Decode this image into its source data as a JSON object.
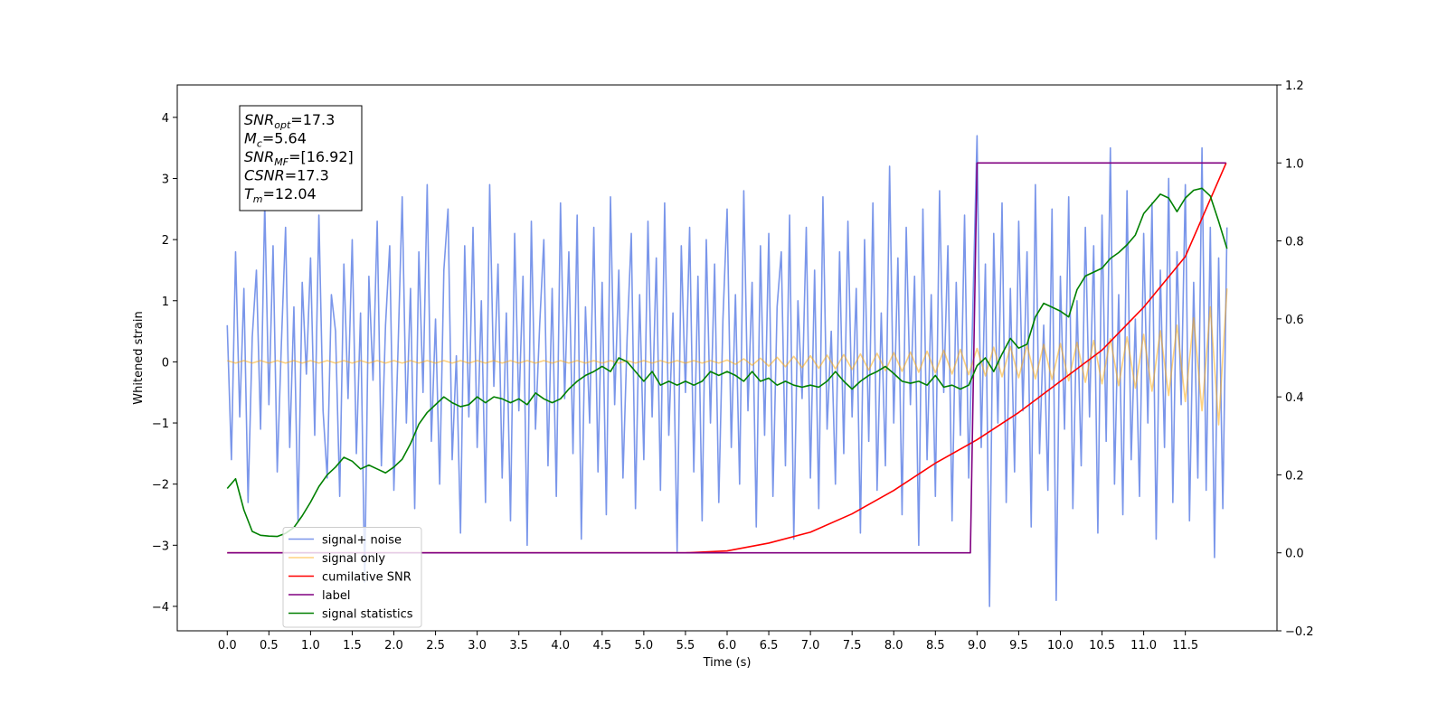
{
  "chart_data": {
    "type": "line",
    "xlabel": "Time (s)",
    "ylabel": "Whitened strain",
    "xlim": [
      -0.6,
      12.6
    ],
    "ylim": [
      -4.4,
      4.53
    ],
    "y2lim": [
      -0.2,
      1.2
    ],
    "xticks": [
      {
        "value": 0,
        "label": "0.0"
      },
      0.5,
      {
        "value": 1,
        "label": "1.0"
      },
      1.5,
      {
        "value": 2,
        "label": "2.0"
      },
      2.5,
      {
        "value": 3,
        "label": "3.0"
      },
      3.5,
      {
        "value": 4,
        "label": "4.0"
      },
      4.5,
      {
        "value": 5,
        "label": "5.0"
      },
      5.5,
      {
        "value": 6,
        "label": "6.0"
      },
      6.5,
      {
        "value": 7,
        "label": "7.0"
      },
      7.5,
      {
        "value": 8,
        "label": "8.0"
      },
      8.5,
      {
        "value": 9,
        "label": "9.0"
      },
      9.5,
      {
        "value": 10,
        "label": "10.0"
      },
      10.5,
      {
        "value": 11,
        "label": "11.0"
      },
      11.5
    ],
    "yticks": [
      {
        "value": -4,
        "label": "−4"
      },
      {
        "value": -3,
        "label": "−3"
      },
      {
        "value": -2,
        "label": "−2"
      },
      {
        "value": -1,
        "label": "−1"
      },
      0,
      1,
      2,
      3,
      4
    ],
    "y2ticks": [
      {
        "value": -0.2,
        "label": "−0.2"
      },
      {
        "value": 0,
        "label": "0.0"
      },
      0.2,
      0.4,
      0.6,
      0.8,
      {
        "value": 1,
        "label": "1.0"
      },
      1.2
    ],
    "legend": "lower left",
    "annotation": [
      {
        "text": "SNR",
        "sub": "opt",
        "rest": "=17.3"
      },
      {
        "text": "M",
        "sub": "c",
        "rest": "=5.64"
      },
      {
        "text": "SNR",
        "sub": "MF",
        "rest": "=[16.92]"
      },
      {
        "text": "CSNR",
        "sub": "",
        "rest": "=17.3"
      },
      {
        "text": "T",
        "sub": "m",
        "rest": "=12.04"
      }
    ],
    "x": [
      0,
      0.1,
      0.2,
      0.3,
      0.4,
      0.5,
      0.6,
      0.7,
      0.8,
      0.9,
      1,
      1.1,
      1.2,
      1.3,
      1.4,
      1.5,
      1.6,
      1.7,
      1.8,
      1.9,
      2,
      2.1,
      2.2,
      2.3,
      2.4,
      2.5,
      2.6,
      2.7,
      2.8,
      2.9,
      3,
      3.1,
      3.2,
      3.3,
      3.4,
      3.5,
      3.6,
      3.7,
      3.8,
      3.9,
      4,
      4.1,
      4.2,
      4.3,
      4.4,
      4.5,
      4.6,
      4.7,
      4.8,
      4.9,
      5,
      5.1,
      5.2,
      5.3,
      5.4,
      5.5,
      5.6,
      5.7,
      5.8,
      5.9,
      6,
      6.1,
      6.2,
      6.3,
      6.4,
      6.5,
      6.6,
      6.7,
      6.8,
      6.9,
      7,
      7.1,
      7.2,
      7.3,
      7.4,
      7.5,
      7.6,
      7.7,
      7.8,
      7.9,
      8,
      8.1,
      8.2,
      8.3,
      8.4,
      8.5,
      8.6,
      8.7,
      8.8,
      8.9,
      9,
      9.1,
      9.2,
      9.3,
      9.4,
      9.5,
      9.6,
      9.7,
      9.8,
      9.9,
      10,
      10.1,
      10.2,
      10.3,
      10.4,
      10.5,
      10.6,
      10.7,
      10.8,
      10.9,
      11,
      11.1,
      11.2,
      11.3,
      11.4,
      11.5,
      11.6,
      11.7,
      11.8,
      11.9,
      12
    ],
    "series": [
      {
        "name": "signal+ noise",
        "color": "royalblue",
        "alpha": 0.7,
        "axis": "y",
        "x": [
          0,
          0.05,
          0.1,
          0.15,
          0.2,
          0.25,
          0.3,
          0.35,
          0.4,
          0.45,
          0.5,
          0.55,
          0.6,
          0.65,
          0.7,
          0.75,
          0.8,
          0.85,
          0.9,
          0.95,
          1,
          1.05,
          1.1,
          1.15,
          1.2,
          1.25,
          1.3,
          1.35,
          1.4,
          1.45,
          1.5,
          1.55,
          1.6,
          1.65,
          1.7,
          1.75,
          1.8,
          1.85,
          1.9,
          1.95,
          2,
          2.05,
          2.1,
          2.15,
          2.2,
          2.25,
          2.3,
          2.35,
          2.4,
          2.45,
          2.5,
          2.55,
          2.6,
          2.65,
          2.7,
          2.75,
          2.8,
          2.85,
          2.9,
          2.95,
          3,
          3.05,
          3.1,
          3.15,
          3.2,
          3.25,
          3.3,
          3.35,
          3.4,
          3.45,
          3.5,
          3.55,
          3.6,
          3.65,
          3.7,
          3.75,
          3.8,
          3.85,
          3.9,
          3.95,
          4,
          4.05,
          4.1,
          4.15,
          4.2,
          4.25,
          4.3,
          4.35,
          4.4,
          4.45,
          4.5,
          4.55,
          4.6,
          4.65,
          4.7,
          4.75,
          4.8,
          4.85,
          4.9,
          4.95,
          5,
          5.05,
          5.1,
          5.15,
          5.2,
          5.25,
          5.3,
          5.35,
          5.4,
          5.45,
          5.5,
          5.55,
          5.6,
          5.65,
          5.7,
          5.75,
          5.8,
          5.85,
          5.9,
          5.95,
          6,
          6.05,
          6.1,
          6.15,
          6.2,
          6.25,
          6.3,
          6.35,
          6.4,
          6.45,
          6.5,
          6.55,
          6.6,
          6.65,
          6.7,
          6.75,
          6.8,
          6.85,
          6.9,
          6.95,
          7,
          7.05,
          7.1,
          7.15,
          7.2,
          7.25,
          7.3,
          7.35,
          7.4,
          7.45,
          7.5,
          7.55,
          7.6,
          7.65,
          7.7,
          7.75,
          7.8,
          7.85,
          7.9,
          7.95,
          8,
          8.05,
          8.1,
          8.15,
          8.2,
          8.25,
          8.3,
          8.35,
          8.4,
          8.45,
          8.5,
          8.55,
          8.6,
          8.65,
          8.7,
          8.75,
          8.8,
          8.85,
          8.9,
          8.95,
          9,
          9.05,
          9.1,
          9.15,
          9.2,
          9.25,
          9.3,
          9.35,
          9.4,
          9.45,
          9.5,
          9.55,
          9.6,
          9.65,
          9.7,
          9.75,
          9.8,
          9.85,
          9.9,
          9.95,
          10,
          10.05,
          10.1,
          10.15,
          10.2,
          10.25,
          10.3,
          10.35,
          10.4,
          10.45,
          10.5,
          10.55,
          10.6,
          10.65,
          10.7,
          10.75,
          10.8,
          10.85,
          10.9,
          10.95,
          11,
          11.05,
          11.1,
          11.15,
          11.2,
          11.25,
          11.3,
          11.35,
          11.4,
          11.45,
          11.5,
          11.55,
          11.6,
          11.65,
          11.7,
          11.75,
          11.8,
          11.85,
          11.9,
          11.95,
          12
        ],
        "values": [
          0.6,
          -1.6,
          1.8,
          -0.9,
          1.2,
          -2.3,
          0.4,
          1.5,
          -1.1,
          2.6,
          -0.7,
          1.9,
          -1.8,
          0.3,
          2.2,
          -1.4,
          0.9,
          -2.6,
          1.3,
          -0.2,
          1.7,
          -1.2,
          2.4,
          -0.8,
          -1.9,
          1.1,
          0.5,
          -2.2,
          1.6,
          -0.6,
          2.0,
          -1.5,
          0.8,
          -3.6,
          1.4,
          -0.3,
          2.3,
          -1.7,
          0.6,
          1.9,
          -2.1,
          0.2,
          2.7,
          -1.0,
          1.2,
          -2.4,
          1.8,
          -0.5,
          2.9,
          -1.3,
          0.7,
          -2.0,
          1.5,
          2.5,
          -1.6,
          0.1,
          -2.8,
          1.9,
          -0.9,
          2.2,
          -1.4,
          1.0,
          -2.3,
          2.9,
          -0.4,
          1.6,
          -1.9,
          0.8,
          -2.6,
          2.1,
          -0.8,
          1.4,
          -3.0,
          2.3,
          -1.1,
          0.6,
          2.0,
          -1.7,
          1.2,
          -2.2,
          2.6,
          -0.6,
          1.8,
          -1.5,
          2.4,
          -2.9,
          0.9,
          -1.0,
          2.2,
          -1.8,
          1.3,
          -2.5,
          2.7,
          -0.7,
          1.5,
          -1.9,
          0.4,
          2.1,
          -2.4,
          1.1,
          -1.6,
          2.3,
          -0.9,
          1.7,
          -2.1,
          2.6,
          -1.2,
          0.8,
          -3.1,
          1.9,
          -0.5,
          2.2,
          -1.8,
          1.4,
          -2.6,
          2.0,
          -1.0,
          1.6,
          -2.3,
          0.7,
          2.5,
          -1.4,
          1.1,
          -2.0,
          2.8,
          -0.8,
          1.3,
          -2.7,
          1.9,
          -1.2,
          2.1,
          -2.2,
          0.9,
          1.8,
          -1.7,
          2.4,
          -2.9,
          1.0,
          -0.6,
          2.2,
          -1.9,
          1.5,
          -2.4,
          2.7,
          -1.1,
          0.5,
          -2.0,
          1.8,
          -1.5,
          2.3,
          -0.9,
          1.2,
          -2.8,
          2.0,
          -1.3,
          2.6,
          -2.1,
          0.8,
          -1.7,
          3.2,
          -1.0,
          1.7,
          -2.5,
          2.2,
          -0.7,
          1.4,
          -3.0,
          2.5,
          -1.6,
          1.1,
          -2.2,
          2.8,
          -0.5,
          1.9,
          -2.6,
          1.3,
          -1.2,
          2.4,
          -1.9,
          0.9,
          3.7,
          -1.4,
          1.6,
          -4.0,
          2.1,
          -1.0,
          2.6,
          -2.3,
          1.2,
          -1.8,
          2.3,
          -0.8,
          1.8,
          -2.7,
          2.9,
          -1.5,
          0.6,
          -2.1,
          2.5,
          -3.9,
          1.4,
          -1.1,
          2.7,
          -2.4,
          1.0,
          -1.7,
          2.2,
          -0.9,
          1.9,
          -2.8,
          2.4,
          -1.3,
          3.5,
          -2.0,
          1.1,
          -2.5,
          2.8,
          -1.6,
          0.7,
          -2.2,
          2.1,
          -1.0,
          2.6,
          -2.9,
          1.5,
          -1.4,
          3.0,
          -2.3,
          1.8,
          -0.7,
          2.9,
          -2.6,
          1.3,
          -1.9,
          3.5,
          -2.1,
          2.2,
          -3.2,
          1.7,
          -2.4,
          2.2
        ]
      },
      {
        "name": "signal only",
        "color": "orange",
        "alpha": 0.5,
        "axis": "y",
        "values": [
          0.02,
          -0.02,
          0.02,
          -0.02,
          0.02,
          -0.02,
          0.02,
          -0.02,
          0.02,
          -0.02,
          0.02,
          -0.02,
          0.02,
          -0.02,
          0.02,
          -0.02,
          0.02,
          -0.02,
          0.02,
          -0.02,
          0.02,
          -0.02,
          0.02,
          -0.02,
          0.02,
          -0.02,
          0.02,
          -0.02,
          0.02,
          -0.02,
          0.02,
          -0.02,
          0.02,
          -0.02,
          0.02,
          -0.02,
          0.02,
          -0.02,
          0.02,
          -0.02,
          0.02,
          -0.02,
          0.02,
          -0.02,
          0.02,
          -0.02,
          0.02,
          -0.02,
          0.02,
          -0.02,
          0.02,
          -0.02,
          0.02,
          -0.02,
          0.02,
          -0.02,
          0.02,
          -0.02,
          0.02,
          -0.02,
          0.03,
          -0.04,
          0.05,
          -0.055,
          0.06,
          -0.07,
          0.075,
          -0.08,
          0.09,
          -0.095,
          0.1,
          -0.105,
          0.11,
          -0.115,
          0.12,
          -0.125,
          0.13,
          -0.135,
          0.14,
          -0.145,
          0.15,
          -0.155,
          0.16,
          -0.17,
          0.175,
          -0.18,
          0.19,
          -0.2,
          0.205,
          -0.21,
          0.22,
          -0.23,
          0.24,
          -0.245,
          0.25,
          -0.26,
          0.27,
          -0.28,
          0.285,
          -0.29,
          0.3,
          -0.31,
          0.32,
          -0.335,
          0.35,
          -0.36,
          0.38,
          -0.39,
          0.41,
          -0.43,
          0.45,
          -0.48,
          0.51,
          -0.55,
          0.6,
          -0.65,
          0.72,
          -0.8,
          0.9,
          -1.03,
          1.2
        ]
      },
      {
        "name": "cumilative SNR",
        "color": "red",
        "alpha": 1,
        "axis": "y2",
        "x": [
          0,
          5.5,
          6,
          6.5,
          7,
          7.5,
          8,
          8.5,
          9,
          9.5,
          10,
          10.5,
          11,
          11.5,
          11.99
        ],
        "values": [
          0,
          0,
          0.005,
          0.025,
          0.053,
          0.1,
          0.16,
          0.23,
          0.29,
          0.36,
          0.44,
          0.52,
          0.63,
          0.76,
          1.0
        ]
      },
      {
        "name": "label",
        "color": "purple",
        "alpha": 1,
        "axis": "y2",
        "x": [
          0,
          8.92,
          9.0,
          11.99
        ],
        "values": [
          0,
          0,
          1,
          1
        ]
      },
      {
        "name": "signal statistics",
        "color": "green",
        "alpha": 1,
        "axis": "y2",
        "values": [
          0.165,
          0.19,
          0.11,
          0.055,
          0.045,
          0.043,
          0.042,
          0.05,
          0.065,
          0.095,
          0.13,
          0.17,
          0.2,
          0.22,
          0.245,
          0.235,
          0.215,
          0.225,
          0.215,
          0.205,
          0.22,
          0.24,
          0.28,
          0.33,
          0.36,
          0.38,
          0.4,
          0.385,
          0.375,
          0.38,
          0.4,
          0.385,
          0.4,
          0.395,
          0.385,
          0.395,
          0.38,
          0.41,
          0.395,
          0.385,
          0.395,
          0.42,
          0.44,
          0.455,
          0.465,
          0.478,
          0.465,
          0.5,
          0.49,
          0.465,
          0.44,
          0.465,
          0.43,
          0.44,
          0.43,
          0.44,
          0.43,
          0.44,
          0.465,
          0.455,
          0.465,
          0.455,
          0.44,
          0.465,
          0.44,
          0.448,
          0.43,
          0.44,
          0.43,
          0.425,
          0.43,
          0.425,
          0.44,
          0.465,
          0.44,
          0.42,
          0.44,
          0.455,
          0.465,
          0.478,
          0.46,
          0.44,
          0.435,
          0.44,
          0.43,
          0.455,
          0.425,
          0.43,
          0.42,
          0.43,
          0.48,
          0.5,
          0.465,
          0.51,
          0.55,
          0.525,
          0.535,
          0.605,
          0.64,
          0.63,
          0.62,
          0.605,
          0.675,
          0.71,
          0.72,
          0.73,
          0.755,
          0.77,
          0.79,
          0.815,
          0.87,
          0.895,
          0.92,
          0.91,
          0.875,
          0.91,
          0.93,
          0.935,
          0.915,
          0.85,
          0.78
        ]
      }
    ]
  }
}
